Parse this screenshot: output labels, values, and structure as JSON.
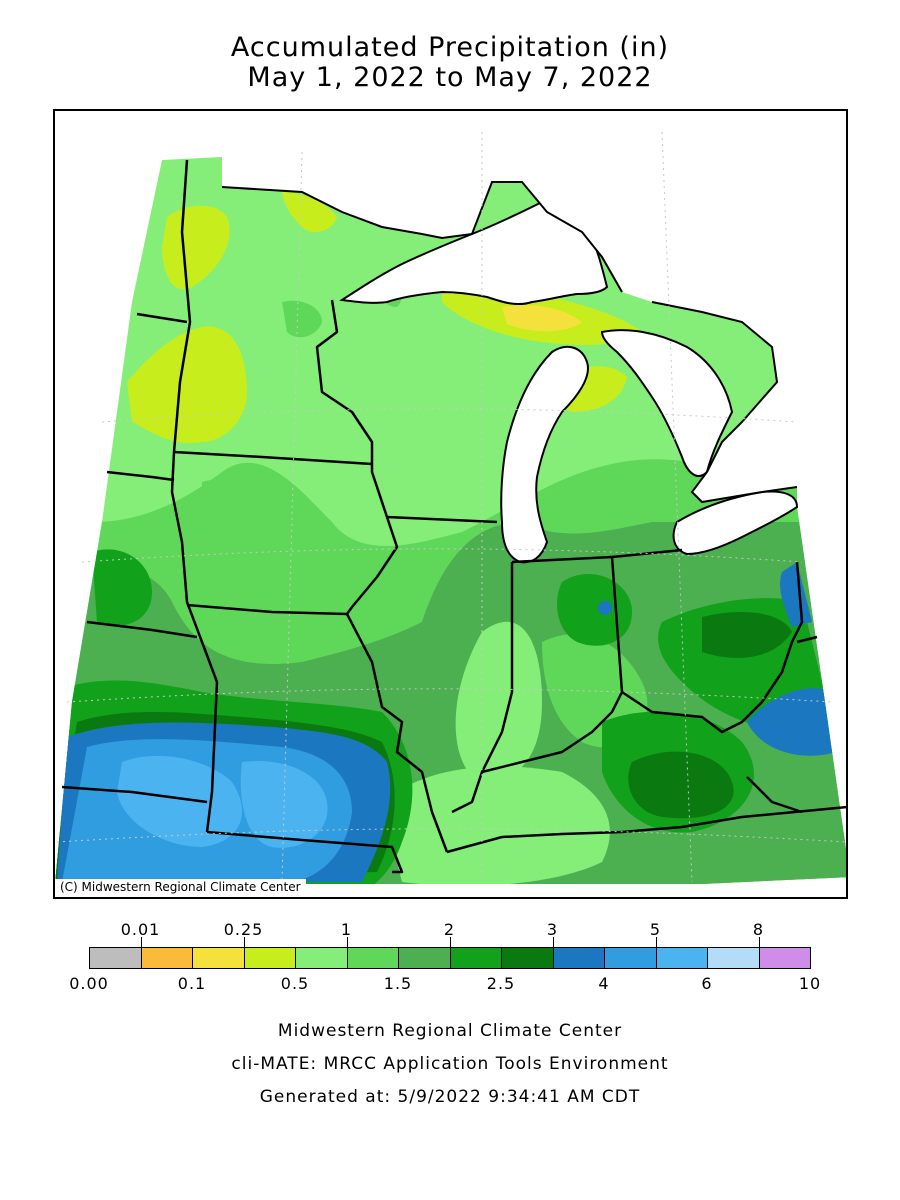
{
  "title": {
    "line1": "Accumulated Precipitation (in)",
    "line2": "May 1, 2022 to May 7, 2022"
  },
  "map": {
    "copyright": "(C) Midwestern Regional Climate Center",
    "region": "Upper Midwest / Great Lakes"
  },
  "legend": {
    "bins": [
      {
        "color": "#bdbdbd"
      },
      {
        "color": "#fbbb3a"
      },
      {
        "color": "#f5e13c"
      },
      {
        "color": "#c7ee1c"
      },
      {
        "color": "#85ee79"
      },
      {
        "color": "#5fd85a"
      },
      {
        "color": "#4caf50"
      },
      {
        "color": "#12a11a"
      },
      {
        "color": "#0a7a10"
      },
      {
        "color": "#1b78c0"
      },
      {
        "color": "#2f9de0"
      },
      {
        "color": "#4bb4f0"
      },
      {
        "color": "#b2dcf8"
      },
      {
        "color": "#d08ce9"
      }
    ],
    "top_labels": [
      "0.01",
      "0.25",
      "1",
      "2",
      "3",
      "5",
      "8"
    ],
    "bottom_labels": [
      "0.00",
      "0.1",
      "0.5",
      "1.5",
      "2.5",
      "4",
      "6",
      "10"
    ]
  },
  "footer": {
    "line1": "Midwestern Regional Climate Center",
    "line2": "cli-MATE: MRCC Application Tools Environment",
    "line3": "Generated at: 5/9/2022 9:34:41 AM CDT"
  }
}
